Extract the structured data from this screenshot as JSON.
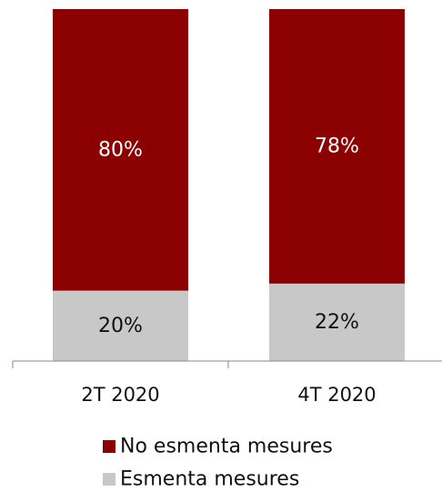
{
  "chart_data": {
    "type": "bar",
    "stacked": true,
    "categories": [
      "2T 2020",
      "4T 2020"
    ],
    "series": [
      {
        "name": "Esmenta mesures",
        "values": [
          20,
          22
        ],
        "labels": [
          "20%",
          "22%"
        ],
        "color": "#c8c8c8",
        "label_color": "#111111"
      },
      {
        "name": "No esmenta mesures",
        "values": [
          80,
          78
        ],
        "labels": [
          "80%",
          "78%"
        ],
        "color": "#8b0000",
        "label_color": "#ffffff"
      }
    ],
    "legend_order": [
      "No esmenta mesures",
      "Esmenta mesures"
    ],
    "ylim": [
      0,
      100
    ],
    "legend_position": "bottom",
    "grid": false
  }
}
